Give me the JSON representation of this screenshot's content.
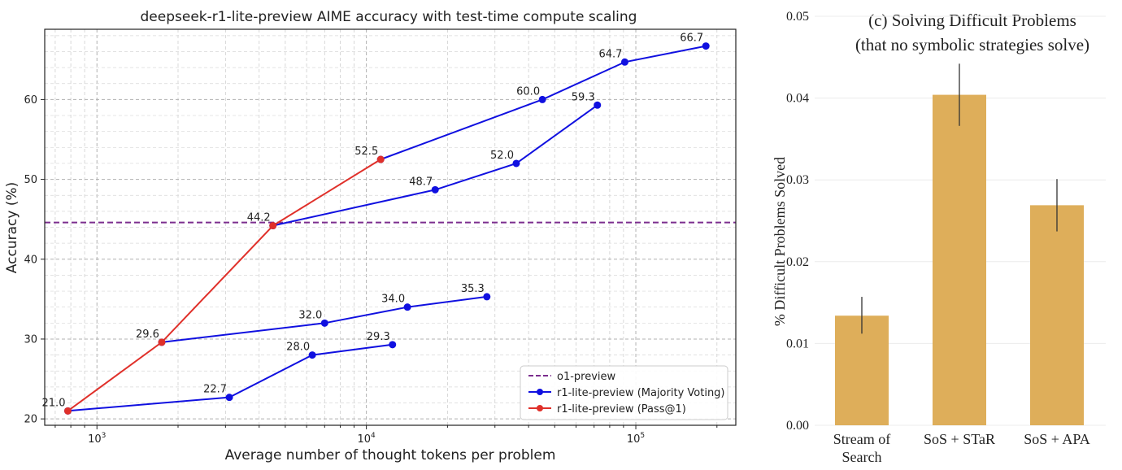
{
  "chart_data": [
    {
      "type": "line",
      "title": "deepseek-r1-lite-preview AIME accuracy with test-time compute scaling",
      "xlabel": "Average number of thought tokens per problem",
      "ylabel": "Accuracy (%)",
      "xscale": "log",
      "xlim": [
        640,
        235000
      ],
      "ylim": [
        19.2,
        68.8
      ],
      "x_ticks": [
        {
          "value": 1000,
          "base": "10",
          "exp": "3"
        },
        {
          "value": 10000,
          "base": "10",
          "exp": "4"
        },
        {
          "value": 100000,
          "base": "10",
          "exp": "5"
        }
      ],
      "y_ticks": [
        20,
        30,
        40,
        50,
        60
      ],
      "grid": true,
      "grid_minor": true,
      "legend_position": "bottom-right",
      "reference_line": {
        "name": "o1-preview",
        "y": 44.6,
        "color": "#7b2d8e",
        "style": "dashed"
      },
      "series": [
        {
          "name": "r1-lite-preview (Majority Voting)",
          "color": "#1010e0",
          "segments": [
            [
              {
                "x": 780,
                "y": 21.0
              },
              {
                "x": 3100,
                "y": 22.7
              },
              {
                "x": 6300,
                "y": 28.0
              },
              {
                "x": 12500,
                "y": 29.3
              }
            ],
            [
              {
                "x": 1740,
                "y": 29.6
              },
              {
                "x": 7000,
                "y": 32.0
              },
              {
                "x": 14200,
                "y": 34.0
              },
              {
                "x": 28000,
                "y": 35.3
              }
            ],
            [
              {
                "x": 4500,
                "y": 44.2
              },
              {
                "x": 18000,
                "y": 48.7
              },
              {
                "x": 36000,
                "y": 52.0
              },
              {
                "x": 72000,
                "y": 59.3
              }
            ],
            [
              {
                "x": 11300,
                "y": 52.5
              },
              {
                "x": 45000,
                "y": 60.0
              },
              {
                "x": 91000,
                "y": 64.7
              },
              {
                "x": 182000,
                "y": 66.7
              }
            ]
          ]
        },
        {
          "name": "r1-lite-preview (Pass@1)",
          "color": "#e0302a",
          "segments": [
            [
              {
                "x": 780,
                "y": 21.0
              },
              {
                "x": 1740,
                "y": 29.6
              },
              {
                "x": 4500,
                "y": 44.2
              },
              {
                "x": 11300,
                "y": 52.5
              }
            ]
          ]
        }
      ],
      "point_labels": [
        {
          "x": 780,
          "y": 21.0,
          "text": "21.0"
        },
        {
          "x": 3100,
          "y": 22.7,
          "text": "22.7"
        },
        {
          "x": 6300,
          "y": 28.0,
          "text": "28.0"
        },
        {
          "x": 12500,
          "y": 29.3,
          "text": "29.3"
        },
        {
          "x": 1740,
          "y": 29.6,
          "text": "29.6"
        },
        {
          "x": 7000,
          "y": 32.0,
          "text": "32.0"
        },
        {
          "x": 14200,
          "y": 34.0,
          "text": "34.0"
        },
        {
          "x": 28000,
          "y": 35.3,
          "text": "35.3"
        },
        {
          "x": 4500,
          "y": 44.2,
          "text": "44.2"
        },
        {
          "x": 18000,
          "y": 48.7,
          "text": "48.7"
        },
        {
          "x": 36000,
          "y": 52.0,
          "text": "52.0"
        },
        {
          "x": 72000,
          "y": 59.3,
          "text": "59.3"
        },
        {
          "x": 11300,
          "y": 52.5,
          "text": "52.5"
        },
        {
          "x": 45000,
          "y": 60.0,
          "text": "60.0"
        },
        {
          "x": 91000,
          "y": 64.7,
          "text": "64.7"
        },
        {
          "x": 182000,
          "y": 66.7,
          "text": "66.7"
        }
      ]
    },
    {
      "type": "bar",
      "title": "(c) Solving Difficult Problems",
      "subtitle": "(that no symbolic strategies solve)",
      "xlabel": "",
      "ylabel": "% Difficult Problems Solved",
      "ylim": [
        0,
        0.05
      ],
      "y_ticks": [
        "0.00",
        "0.01",
        "0.02",
        "0.03",
        "0.04",
        "0.05"
      ],
      "grid": true,
      "bar_color": "#deae5a",
      "categories": [
        {
          "label_lines": [
            "Stream of",
            "Search"
          ]
        },
        {
          "label_lines": [
            "SoS + STaR"
          ]
        },
        {
          "label_lines": [
            "SoS + APA"
          ]
        }
      ],
      "values": [
        0.0134,
        0.0404,
        0.0269
      ],
      "error_bars": [
        [
          0.0112,
          0.0157
        ],
        [
          0.0366,
          0.0442
        ],
        [
          0.0237,
          0.0301
        ]
      ]
    }
  ]
}
